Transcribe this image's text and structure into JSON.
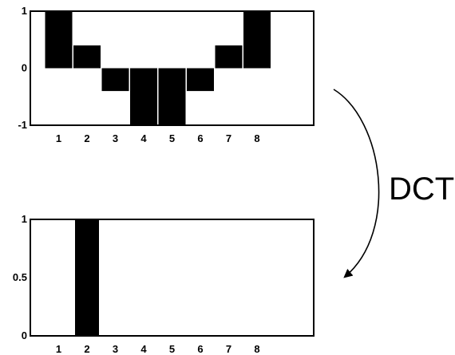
{
  "chart_data": [
    {
      "type": "bar",
      "categories": [
        "1",
        "2",
        "3",
        "4",
        "5",
        "6",
        "7",
        "8"
      ],
      "values": [
        1,
        0.4,
        -0.4,
        -1,
        -1,
        -0.4,
        0.4,
        1
      ],
      "ylim": [
        -1,
        1
      ],
      "xlim": [
        0,
        10
      ],
      "y_tick_labels": [
        "1",
        "0",
        "-1"
      ],
      "y_tick_values": [
        1,
        0,
        -1
      ],
      "grid": false,
      "bar_color": "#000000"
    },
    {
      "type": "bar",
      "categories": [
        "1",
        "2",
        "3",
        "4",
        "5",
        "6",
        "7",
        "8"
      ],
      "values": [
        0,
        1,
        0,
        0,
        0,
        0,
        0,
        0
      ],
      "ylim": [
        0,
        1
      ],
      "xlim": [
        0,
        10
      ],
      "y_tick_labels": [
        "1",
        "0.5",
        "0"
      ],
      "y_tick_values": [
        1,
        0.5,
        0
      ],
      "grid": false,
      "bar_color": "#000000"
    }
  ],
  "annotation": {
    "label": "DCT"
  }
}
